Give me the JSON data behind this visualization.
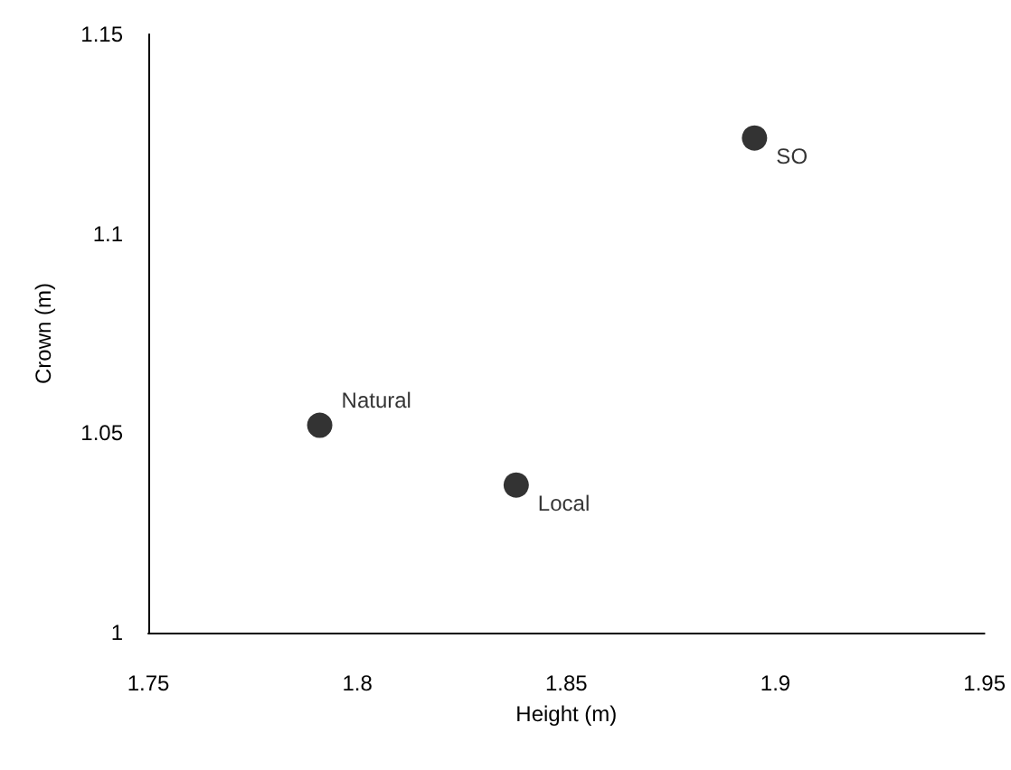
{
  "chart_data": {
    "type": "scatter",
    "xlabel": "Height (m)",
    "ylabel": "Crown (m)",
    "xlim": [
      1.75,
      1.95
    ],
    "xticks": [
      1.75,
      1.8,
      1.85,
      1.9,
      1.95
    ],
    "ylim": [
      1,
      1.15
    ],
    "yticks": [
      1,
      1.05,
      1.1,
      1.15
    ],
    "series": [
      {
        "name": "Natural",
        "color": "#000000",
        "x": [
          1.791
        ],
        "values": [
          1.052
        ]
      },
      {
        "name": "Local",
        "color": "#000000",
        "x": [
          1.838
        ],
        "values": [
          1.037
        ]
      },
      {
        "name": "SO",
        "color": "#000000",
        "x": [
          1.895
        ],
        "values": [
          1.124
        ]
      }
    ],
    "marker": "circle",
    "grid": false,
    "legend": false
  }
}
